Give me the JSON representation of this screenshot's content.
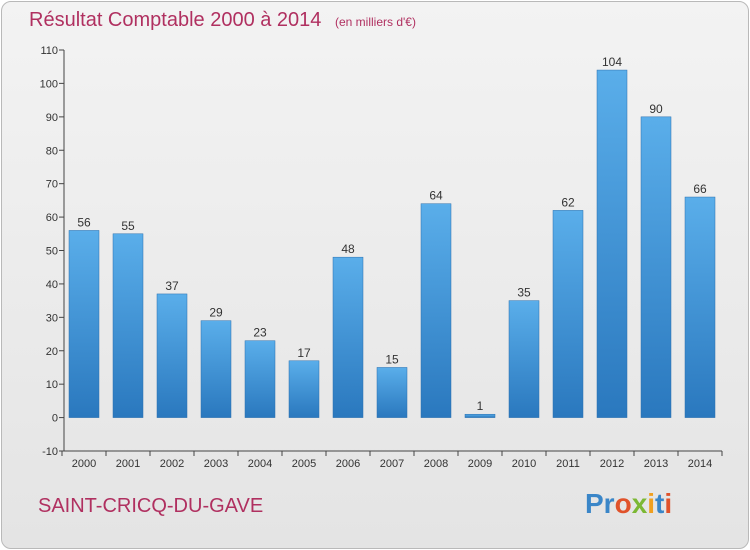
{
  "header": {
    "title": "Résultat Comptable 2000 à 2014",
    "unit": "(en milliers d'€)"
  },
  "footer": {
    "commune": "SAINT-CRICQ-DU-GAVE",
    "logo_text": "Proxiti",
    "logo_letters": [
      "Pr",
      "o",
      "x",
      "i",
      "t",
      "i"
    ]
  },
  "chart_data": {
    "type": "bar",
    "categories": [
      "2000",
      "2001",
      "2002",
      "2003",
      "2004",
      "2005",
      "2006",
      "2007",
      "2008",
      "2009",
      "2010",
      "2011",
      "2012",
      "2013",
      "2014"
    ],
    "values": [
      56,
      55,
      37,
      29,
      23,
      17,
      48,
      15,
      64,
      1,
      35,
      62,
      104,
      90,
      66
    ],
    "ylim": [
      -10,
      110
    ],
    "yticks": [
      -10,
      0,
      10,
      20,
      30,
      40,
      50,
      60,
      70,
      80,
      90,
      100,
      110
    ],
    "grid": false,
    "bar_color": "#3a8fd6",
    "title": "Résultat Comptable 2000 à 2014"
  }
}
